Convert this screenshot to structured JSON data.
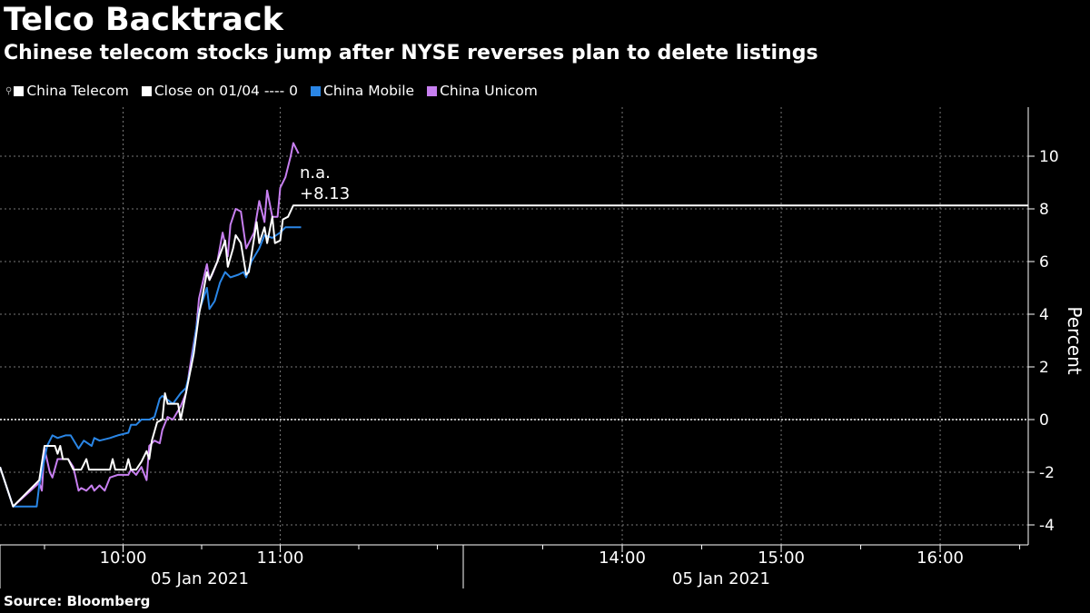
{
  "header": {
    "title": "Telco Backtrack",
    "subtitle": "Chinese telecom stocks jump after NYSE reverses plan to delete listings"
  },
  "legend": [
    {
      "label": "China Telecom",
      "color": "#ffffff",
      "icon": "line-marker-icon"
    },
    {
      "label": "Close on 01/04 ---- 0",
      "color": "#ffffff"
    },
    {
      "label": "China Mobile",
      "color": "#2a86e6"
    },
    {
      "label": "China Unicom",
      "color": "#c77ff0"
    }
  ],
  "source": "Source: Bloomberg",
  "chart_data": {
    "type": "line",
    "title": "Telco Backtrack",
    "ylabel": "Percent",
    "ylim": [
      -4.8,
      11.8
    ],
    "yticks": [
      "-4",
      "-2",
      "0",
      "2",
      "4",
      "6",
      "8",
      "10"
    ],
    "xticks": [
      "10:00",
      "11:00",
      "14:00",
      "15:00",
      "16:00"
    ],
    "xdate_labels": [
      "05 Jan 2021",
      "05 Jan 2021"
    ],
    "grid": true,
    "legend_position": "top-left",
    "reference_line": {
      "label": "Close on 01/04",
      "value": 0
    },
    "annotation": {
      "line1": "n.a.",
      "line2": "+8.13",
      "value": 8.13
    },
    "series": [
      {
        "name": "China Unicom",
        "color": "#c77ff0",
        "points": [
          [
            "09:13",
            -1.8
          ],
          [
            "09:18",
            -3.3
          ],
          [
            "09:28",
            -2.4
          ],
          [
            "09:29",
            -2.7
          ],
          [
            "09:30",
            -1.1
          ],
          [
            "09:32",
            -2.0
          ],
          [
            "09:33",
            -2.2
          ],
          [
            "09:35",
            -1.5
          ],
          [
            "09:39",
            -1.5
          ],
          [
            "09:41",
            -1.8
          ],
          [
            "09:43",
            -2.7
          ],
          [
            "09:44",
            -2.6
          ],
          [
            "09:46",
            -2.7
          ],
          [
            "09:48",
            -2.5
          ],
          [
            "09:49",
            -2.7
          ],
          [
            "09:51",
            -2.5
          ],
          [
            "09:53",
            -2.7
          ],
          [
            "09:55",
            -2.2
          ],
          [
            "09:58",
            -2.1
          ],
          [
            "10:02",
            -2.1
          ],
          [
            "10:03",
            -1.9
          ],
          [
            "10:05",
            -2.1
          ],
          [
            "10:07",
            -1.8
          ],
          [
            "10:09",
            -2.3
          ],
          [
            "10:10",
            -1.0
          ],
          [
            "10:12",
            -0.8
          ],
          [
            "10:14",
            -0.9
          ],
          [
            "10:15",
            -0.4
          ],
          [
            "10:17",
            0.1
          ],
          [
            "10:19",
            0.0
          ],
          [
            "10:22",
            0.5
          ],
          [
            "10:24",
            1.0
          ],
          [
            "10:26",
            2.3
          ],
          [
            "10:28",
            3.5
          ],
          [
            "10:29",
            4.6
          ],
          [
            "10:32",
            5.9
          ],
          [
            "10:33",
            5.3
          ],
          [
            "10:34",
            5.5
          ],
          [
            "10:36",
            6.0
          ],
          [
            "10:38",
            7.1
          ],
          [
            "10:40",
            6.2
          ],
          [
            "10:41",
            7.4
          ],
          [
            "10:43",
            8.0
          ],
          [
            "10:45",
            7.9
          ],
          [
            "10:47",
            6.5
          ],
          [
            "10:48",
            6.7
          ],
          [
            "10:50",
            7.1
          ],
          [
            "10:52",
            8.3
          ],
          [
            "10:54",
            7.5
          ],
          [
            "10:55",
            8.7
          ],
          [
            "10:57",
            7.7
          ],
          [
            "10:59",
            7.7
          ],
          [
            "11:00",
            8.8
          ],
          [
            "11:02",
            9.2
          ],
          [
            "11:04",
            10.0
          ],
          [
            "11:05",
            10.5
          ],
          [
            "11:07",
            10.1
          ]
        ]
      },
      {
        "name": "China Mobile",
        "color": "#2a86e6",
        "points": [
          [
            "09:13",
            -1.8
          ],
          [
            "09:18",
            -3.3
          ],
          [
            "09:27",
            -3.3
          ],
          [
            "09:28",
            -2.5
          ],
          [
            "09:31",
            -1.0
          ],
          [
            "09:33",
            -0.6
          ],
          [
            "09:35",
            -0.7
          ],
          [
            "09:38",
            -0.6
          ],
          [
            "09:40",
            -0.6
          ],
          [
            "09:43",
            -1.1
          ],
          [
            "09:45",
            -0.8
          ],
          [
            "09:48",
            -1.0
          ],
          [
            "09:49",
            -0.7
          ],
          [
            "09:51",
            -0.8
          ],
          [
            "09:55",
            -0.7
          ],
          [
            "09:58",
            -0.6
          ],
          [
            "10:02",
            -0.5
          ],
          [
            "10:03",
            -0.2
          ],
          [
            "10:05",
            -0.2
          ],
          [
            "10:07",
            0.0
          ],
          [
            "10:10",
            0.0
          ],
          [
            "10:12",
            0.1
          ],
          [
            "10:14",
            0.8
          ],
          [
            "10:15",
            0.9
          ],
          [
            "10:19",
            0.6
          ],
          [
            "10:22",
            1.0
          ],
          [
            "10:24",
            1.2
          ],
          [
            "10:26",
            2.0
          ],
          [
            "10:28",
            3.5
          ],
          [
            "10:29",
            4.1
          ],
          [
            "10:32",
            5.0
          ],
          [
            "10:33",
            4.2
          ],
          [
            "10:35",
            4.5
          ],
          [
            "10:37",
            5.2
          ],
          [
            "10:39",
            5.6
          ],
          [
            "10:41",
            5.4
          ],
          [
            "10:44",
            5.5
          ],
          [
            "10:46",
            5.6
          ],
          [
            "10:47",
            5.4
          ],
          [
            "10:49",
            6.0
          ],
          [
            "10:52",
            6.5
          ],
          [
            "10:54",
            7.0
          ],
          [
            "10:57",
            6.9
          ],
          [
            "11:00",
            7.1
          ],
          [
            "11:02",
            7.3
          ],
          [
            "11:08",
            7.3
          ]
        ]
      },
      {
        "name": "China Telecom",
        "color": "#ffffff",
        "points": [
          [
            "09:13",
            -1.8
          ],
          [
            "09:18",
            -3.3
          ],
          [
            "09:28",
            -2.3
          ],
          [
            "09:30",
            -1.0
          ],
          [
            "09:34",
            -1.0
          ],
          [
            "09:35",
            -1.3
          ],
          [
            "09:36",
            -1.0
          ],
          [
            "09:37",
            -1.5
          ],
          [
            "09:39",
            -1.5
          ],
          [
            "09:41",
            -1.9
          ],
          [
            "09:44",
            -1.9
          ],
          [
            "09:46",
            -1.5
          ],
          [
            "09:47",
            -1.9
          ],
          [
            "09:55",
            -1.9
          ],
          [
            "09:56",
            -1.5
          ],
          [
            "09:57",
            -1.9
          ],
          [
            "10:01",
            -1.9
          ],
          [
            "10:02",
            -1.5
          ],
          [
            "10:03",
            -1.9
          ],
          [
            "10:05",
            -1.9
          ],
          [
            "10:07",
            -1.6
          ],
          [
            "10:09",
            -1.2
          ],
          [
            "10:10",
            -1.5
          ],
          [
            "10:11",
            -0.8
          ],
          [
            "10:13",
            -0.1
          ],
          [
            "10:15",
            0.0
          ],
          [
            "10:16",
            1.0
          ],
          [
            "10:17",
            0.6
          ],
          [
            "10:21",
            0.6
          ],
          [
            "10:22",
            0.0
          ],
          [
            "10:24",
            1.0
          ],
          [
            "10:27",
            2.5
          ],
          [
            "10:29",
            4.0
          ],
          [
            "10:30",
            4.5
          ],
          [
            "10:32",
            5.6
          ],
          [
            "10:33",
            5.3
          ],
          [
            "10:36",
            6.0
          ],
          [
            "10:39",
            6.8
          ],
          [
            "10:40",
            5.8
          ],
          [
            "10:42",
            6.5
          ],
          [
            "10:43",
            7.0
          ],
          [
            "10:45",
            6.7
          ],
          [
            "10:47",
            5.5
          ],
          [
            "10:48",
            5.6
          ],
          [
            "10:51",
            7.5
          ],
          [
            "10:52",
            6.7
          ],
          [
            "10:54",
            7.3
          ],
          [
            "10:55",
            6.7
          ],
          [
            "10:57",
            7.7
          ],
          [
            "10:58",
            6.7
          ],
          [
            "11:00",
            6.8
          ],
          [
            "11:01",
            7.6
          ],
          [
            "11:03",
            7.7
          ],
          [
            "11:05",
            8.13
          ]
        ]
      }
    ]
  }
}
